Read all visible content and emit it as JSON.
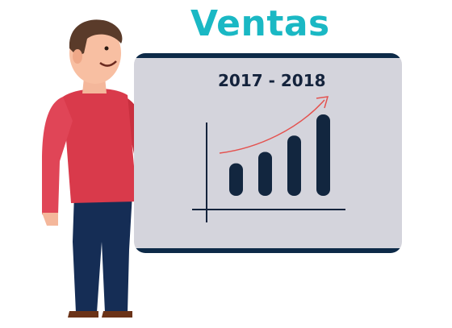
{
  "title": "Ventas",
  "subtitle": "2017 - 2018",
  "colors": {
    "title": "#1ab8c4",
    "board": "#d4d4dc",
    "board_frame": "#0d2a48",
    "bars": "#12263f",
    "trend_arrow": "#e4524f",
    "shirt": "#d93a4b",
    "pants": "#152d55"
  },
  "chart_data": {
    "type": "bar",
    "categories": [
      "",
      "",
      "",
      ""
    ],
    "values": [
      2,
      2.7,
      3.7,
      5
    ],
    "title": "",
    "xlabel": "",
    "ylabel": "",
    "ylim": [
      0,
      5.5
    ],
    "trend": "increasing",
    "grid": false
  }
}
